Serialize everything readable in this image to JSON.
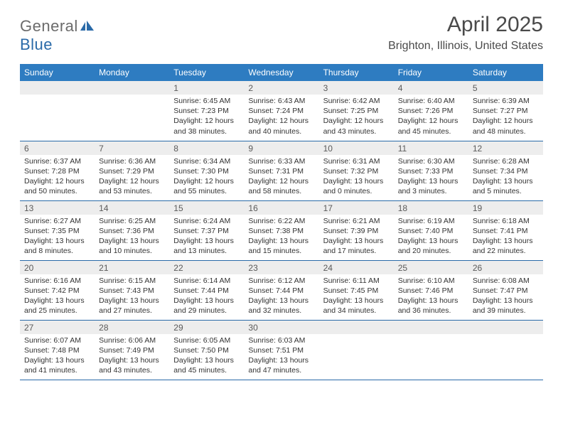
{
  "logo": {
    "word1": "General",
    "word2": "Blue"
  },
  "colors": {
    "header_bg": "#2e7cc1",
    "header_text": "#ffffff",
    "row_divider": "#2a6aa8",
    "daynum_bg": "#ededed",
    "text": "#333333",
    "title": "#4a4a4a",
    "logo_gray": "#6b6b6b",
    "logo_blue": "#2a6aa8"
  },
  "title": "April 2025",
  "location": "Brighton, Illinois, United States",
  "weekdays": [
    "Sunday",
    "Monday",
    "Tuesday",
    "Wednesday",
    "Thursday",
    "Friday",
    "Saturday"
  ],
  "weeks": [
    [
      null,
      null,
      {
        "n": "1",
        "sr": "6:45 AM",
        "ss": "7:23 PM",
        "dl": "12 hours and 38 minutes."
      },
      {
        "n": "2",
        "sr": "6:43 AM",
        "ss": "7:24 PM",
        "dl": "12 hours and 40 minutes."
      },
      {
        "n": "3",
        "sr": "6:42 AM",
        "ss": "7:25 PM",
        "dl": "12 hours and 43 minutes."
      },
      {
        "n": "4",
        "sr": "6:40 AM",
        "ss": "7:26 PM",
        "dl": "12 hours and 45 minutes."
      },
      {
        "n": "5",
        "sr": "6:39 AM",
        "ss": "7:27 PM",
        "dl": "12 hours and 48 minutes."
      }
    ],
    [
      {
        "n": "6",
        "sr": "6:37 AM",
        "ss": "7:28 PM",
        "dl": "12 hours and 50 minutes."
      },
      {
        "n": "7",
        "sr": "6:36 AM",
        "ss": "7:29 PM",
        "dl": "12 hours and 53 minutes."
      },
      {
        "n": "8",
        "sr": "6:34 AM",
        "ss": "7:30 PM",
        "dl": "12 hours and 55 minutes."
      },
      {
        "n": "9",
        "sr": "6:33 AM",
        "ss": "7:31 PM",
        "dl": "12 hours and 58 minutes."
      },
      {
        "n": "10",
        "sr": "6:31 AM",
        "ss": "7:32 PM",
        "dl": "13 hours and 0 minutes."
      },
      {
        "n": "11",
        "sr": "6:30 AM",
        "ss": "7:33 PM",
        "dl": "13 hours and 3 minutes."
      },
      {
        "n": "12",
        "sr": "6:28 AM",
        "ss": "7:34 PM",
        "dl": "13 hours and 5 minutes."
      }
    ],
    [
      {
        "n": "13",
        "sr": "6:27 AM",
        "ss": "7:35 PM",
        "dl": "13 hours and 8 minutes."
      },
      {
        "n": "14",
        "sr": "6:25 AM",
        "ss": "7:36 PM",
        "dl": "13 hours and 10 minutes."
      },
      {
        "n": "15",
        "sr": "6:24 AM",
        "ss": "7:37 PM",
        "dl": "13 hours and 13 minutes."
      },
      {
        "n": "16",
        "sr": "6:22 AM",
        "ss": "7:38 PM",
        "dl": "13 hours and 15 minutes."
      },
      {
        "n": "17",
        "sr": "6:21 AM",
        "ss": "7:39 PM",
        "dl": "13 hours and 17 minutes."
      },
      {
        "n": "18",
        "sr": "6:19 AM",
        "ss": "7:40 PM",
        "dl": "13 hours and 20 minutes."
      },
      {
        "n": "19",
        "sr": "6:18 AM",
        "ss": "7:41 PM",
        "dl": "13 hours and 22 minutes."
      }
    ],
    [
      {
        "n": "20",
        "sr": "6:16 AM",
        "ss": "7:42 PM",
        "dl": "13 hours and 25 minutes."
      },
      {
        "n": "21",
        "sr": "6:15 AM",
        "ss": "7:43 PM",
        "dl": "13 hours and 27 minutes."
      },
      {
        "n": "22",
        "sr": "6:14 AM",
        "ss": "7:44 PM",
        "dl": "13 hours and 29 minutes."
      },
      {
        "n": "23",
        "sr": "6:12 AM",
        "ss": "7:44 PM",
        "dl": "13 hours and 32 minutes."
      },
      {
        "n": "24",
        "sr": "6:11 AM",
        "ss": "7:45 PM",
        "dl": "13 hours and 34 minutes."
      },
      {
        "n": "25",
        "sr": "6:10 AM",
        "ss": "7:46 PM",
        "dl": "13 hours and 36 minutes."
      },
      {
        "n": "26",
        "sr": "6:08 AM",
        "ss": "7:47 PM",
        "dl": "13 hours and 39 minutes."
      }
    ],
    [
      {
        "n": "27",
        "sr": "6:07 AM",
        "ss": "7:48 PM",
        "dl": "13 hours and 41 minutes."
      },
      {
        "n": "28",
        "sr": "6:06 AM",
        "ss": "7:49 PM",
        "dl": "13 hours and 43 minutes."
      },
      {
        "n": "29",
        "sr": "6:05 AM",
        "ss": "7:50 PM",
        "dl": "13 hours and 45 minutes."
      },
      {
        "n": "30",
        "sr": "6:03 AM",
        "ss": "7:51 PM",
        "dl": "13 hours and 47 minutes."
      },
      null,
      null,
      null
    ]
  ],
  "labels": {
    "sunrise": "Sunrise: ",
    "sunset": "Sunset: ",
    "daylight": "Daylight: "
  }
}
